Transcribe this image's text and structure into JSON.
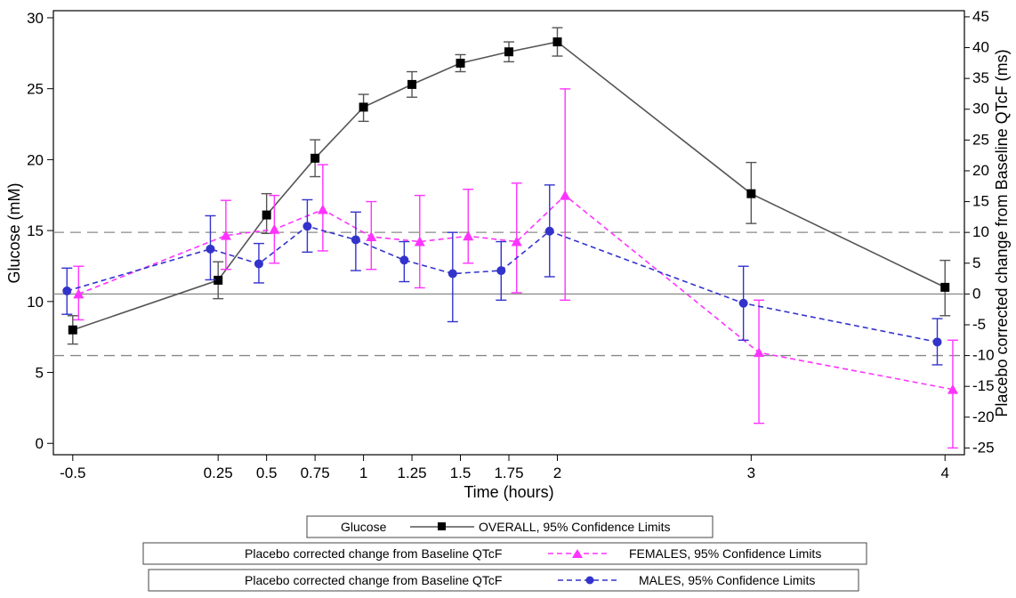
{
  "chart_data": {
    "type": "line",
    "xlabel": "Time (hours)",
    "ylabel_left": "Glucose (mM)",
    "ylabel_right": "Placebo corrected change from Baseline QTcF (ms)",
    "x_ticks": [
      -0.5,
      0.25,
      0.5,
      0.75,
      1,
      1.25,
      1.5,
      1.75,
      2,
      3,
      4
    ],
    "x_tick_labels": [
      "-0.5",
      "0.25",
      "0.5",
      "0.75",
      "1",
      "1.25",
      "1.5",
      "1.75",
      "2",
      "3",
      "4"
    ],
    "xlim": [
      -0.6,
      4.1
    ],
    "y_left_ticks": [
      0,
      5,
      10,
      15,
      20,
      25,
      30
    ],
    "y_left_tick_labels": [
      "0",
      "5",
      "10",
      "15",
      "20",
      "25",
      "30"
    ],
    "ylim_left": [
      -0.8,
      30.5
    ],
    "y_right_ticks": [
      -25,
      -20,
      -15,
      -10,
      -5,
      0,
      5,
      10,
      15,
      20,
      25,
      30,
      35,
      40,
      45
    ],
    "y_right_tick_labels": [
      "-25",
      "-20",
      "-15",
      "-10",
      "-5",
      "0",
      "5",
      "10",
      "15",
      "20",
      "25",
      "30",
      "35",
      "40",
      "45"
    ],
    "ylim_right": [
      -26.1,
      46.0
    ],
    "reference_lines_right": [
      {
        "value": 0,
        "style": "solid"
      },
      {
        "value": 10,
        "style": "dashed"
      },
      {
        "value": -10,
        "style": "dashed"
      }
    ],
    "series": [
      {
        "label": "OVERALL, 95% Confidence Limits",
        "axis": "left",
        "color": "#555555",
        "marker": "square",
        "line": "solid",
        "x": [
          -0.5,
          0.25,
          0.5,
          0.75,
          1,
          1.25,
          1.5,
          1.75,
          2,
          3,
          4
        ],
        "y": [
          8.0,
          11.5,
          16.1,
          20.1,
          23.7,
          25.3,
          26.8,
          27.6,
          28.3,
          17.6,
          11.0
        ],
        "lower": [
          7.0,
          10.2,
          14.8,
          18.8,
          22.7,
          24.4,
          26.2,
          26.9,
          27.3,
          15.5,
          9.0
        ],
        "upper": [
          9.0,
          12.8,
          17.6,
          21.4,
          24.6,
          26.2,
          27.4,
          28.3,
          29.3,
          19.8,
          12.9
        ]
      },
      {
        "label": "FEMALES, 95% Confidence Limits",
        "axis": "right",
        "color": "#ff33ff",
        "marker": "triangle",
        "line": "dashed",
        "x": [
          -0.47,
          0.29,
          0.54,
          0.79,
          1.04,
          1.29,
          1.54,
          1.79,
          2.04,
          3.04,
          4.04
        ],
        "y": [
          0.0,
          9.5,
          10.5,
          13.7,
          9.3,
          8.5,
          9.4,
          8.5,
          16.0,
          -9.5,
          -15.5
        ],
        "lower": [
          -4.2,
          4.0,
          5.0,
          7.0,
          4.0,
          1.0,
          5.0,
          0.2,
          -1.0,
          -21.0,
          -25.0
        ],
        "upper": [
          4.5,
          15.2,
          16.0,
          21.0,
          15.0,
          16.0,
          17.0,
          18.0,
          33.3,
          -1.0,
          -7.5
        ]
      },
      {
        "label": "MALES, 95% Confidence Limits",
        "axis": "right",
        "color": "#3333cc",
        "marker": "circle",
        "line": "dashed",
        "x": [
          -0.53,
          0.21,
          0.46,
          0.71,
          0.96,
          1.21,
          1.46,
          1.71,
          1.96,
          2.96,
          3.96
        ],
        "y": [
          0.5,
          7.3,
          4.9,
          11.0,
          8.8,
          5.5,
          3.3,
          3.8,
          10.2,
          -1.5,
          -7.8
        ],
        "lower": [
          -3.3,
          2.3,
          1.8,
          6.8,
          3.8,
          2.0,
          -4.5,
          -1.0,
          2.8,
          -7.5,
          -11.5
        ],
        "upper": [
          4.2,
          12.7,
          8.2,
          15.3,
          13.3,
          8.5,
          10.0,
          8.5,
          17.7,
          4.5,
          -4.0
        ]
      }
    ],
    "legends": [
      {
        "group": "Glucose",
        "entry": "OVERALL, 95% Confidence Limits"
      },
      {
        "group": "Placebo corrected change from Baseline QTcF",
        "entry": "FEMALES, 95% Confidence Limits"
      },
      {
        "group": "Placebo corrected change from Baseline QTcF",
        "entry": "MALES, 95% Confidence Limits"
      }
    ]
  }
}
